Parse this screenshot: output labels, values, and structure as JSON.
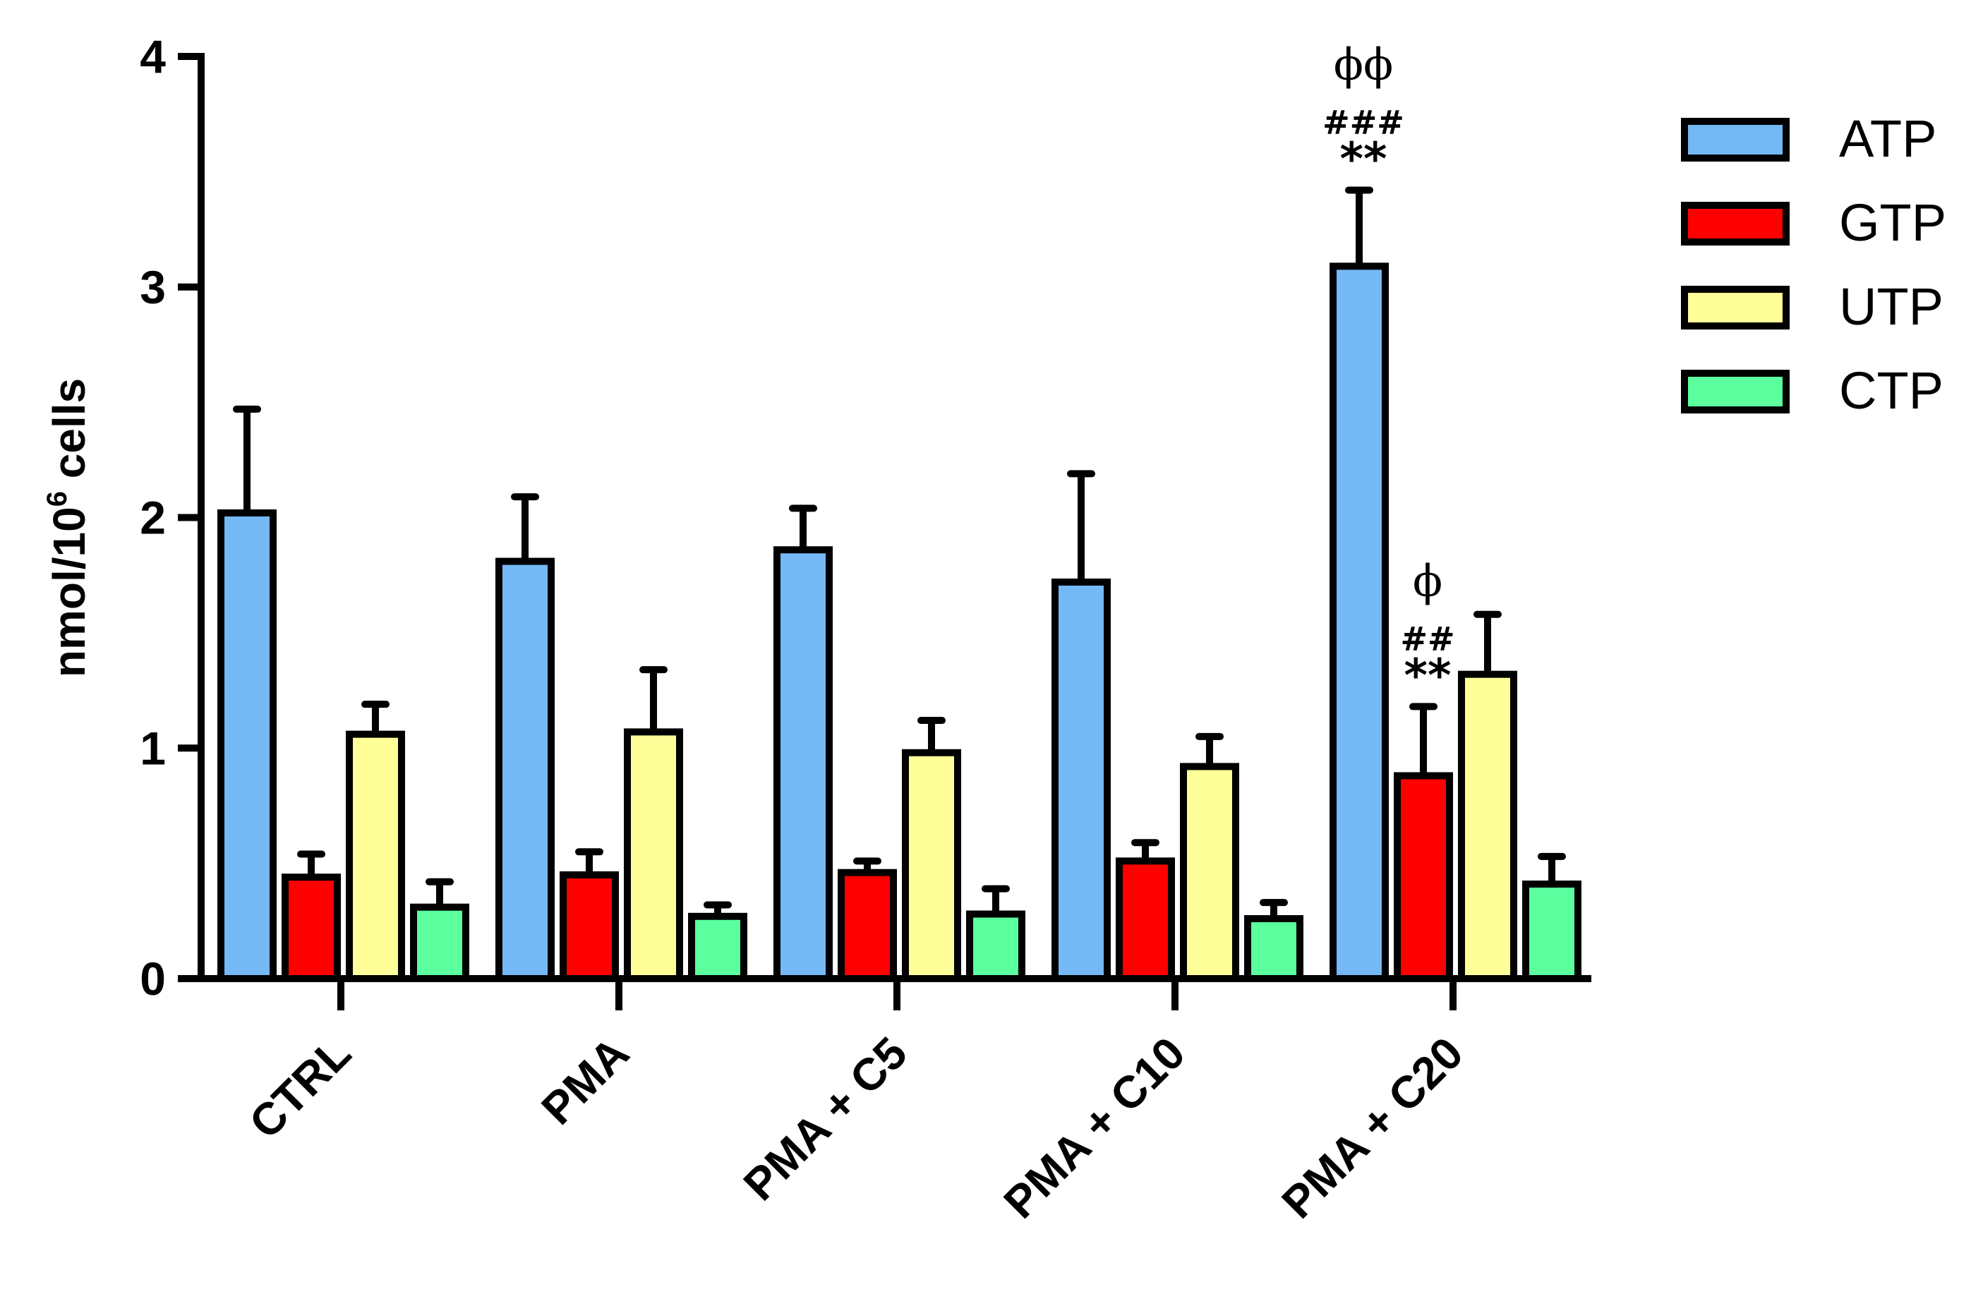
{
  "chart_data": {
    "type": "bar",
    "title": "",
    "xlabel": "",
    "ylabel": "nmol/10",
    "ylabel_superscript": "6",
    "ylabel_suffix": " cells",
    "ylim": [
      0,
      4
    ],
    "yticks": [
      "0",
      "1",
      "2",
      "3",
      "4"
    ],
    "categories": [
      "CTRL",
      "PMA",
      "PMA + C5",
      "PMA + C10",
      "PMA + C20"
    ],
    "series": [
      {
        "name": "ATP",
        "color": "#74B9F5",
        "values": [
          2.02,
          1.81,
          1.86,
          1.72,
          3.09
        ],
        "errors": [
          0.45,
          0.28,
          0.18,
          0.47,
          0.33
        ]
      },
      {
        "name": "GTP",
        "color": "#FF0000",
        "values": [
          0.44,
          0.45,
          0.46,
          0.51,
          0.88
        ],
        "errors": [
          0.1,
          0.1,
          0.05,
          0.08,
          0.3
        ]
      },
      {
        "name": "UTP",
        "color": "#FFFF99",
        "values": [
          1.06,
          1.07,
          0.98,
          0.92,
          1.32
        ],
        "errors": [
          0.13,
          0.27,
          0.14,
          0.13,
          0.26
        ]
      },
      {
        "name": "CTP",
        "color": "#5CFF9E",
        "values": [
          0.31,
          0.27,
          0.28,
          0.26,
          0.41
        ],
        "errors": [
          0.11,
          0.05,
          0.11,
          0.07,
          0.12
        ]
      }
    ],
    "annotations": [
      {
        "category": "PMA + C20",
        "series": "ATP",
        "phi": "ϕϕ",
        "hash": "###",
        "star": "**"
      },
      {
        "category": "PMA + C20",
        "series": "GTP",
        "phi": "ϕ",
        "hash": "##",
        "star": "**"
      }
    ],
    "legend_position": "top-right",
    "grid": false
  }
}
